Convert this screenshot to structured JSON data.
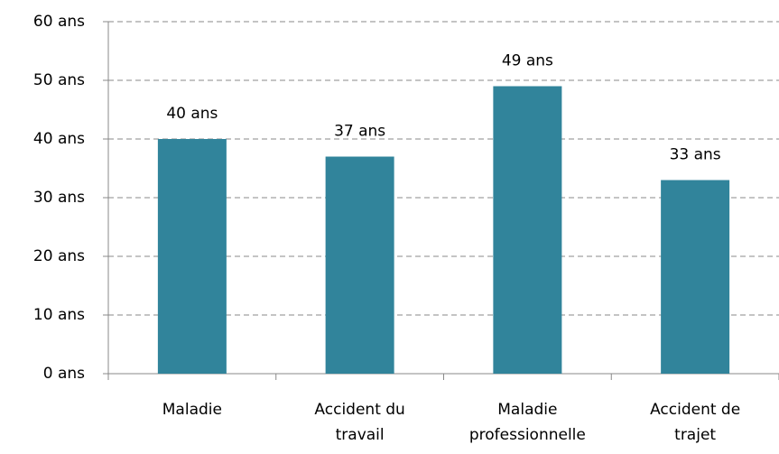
{
  "chart_data": {
    "type": "bar",
    "categories": [
      "Maladie",
      "Accident du travail",
      "Maladie professionnelle",
      "Accident de trajet"
    ],
    "values": [
      40,
      37,
      49,
      33
    ],
    "value_labels": [
      "40 ans",
      "37 ans",
      "49 ans",
      "33 ans"
    ],
    "color": "#31849b",
    "ylim": [
      0,
      60
    ],
    "yticks": [
      {
        "value": 0,
        "label": "0 ans"
      },
      {
        "value": 10,
        "label": "10 ans"
      },
      {
        "value": 20,
        "label": "20 ans"
      },
      {
        "value": 30,
        "label": "30 ans"
      },
      {
        "value": 40,
        "label": "40 ans"
      },
      {
        "value": 50,
        "label": "50 ans"
      },
      {
        "value": 60,
        "label": "60 ans"
      }
    ],
    "grid": true
  }
}
